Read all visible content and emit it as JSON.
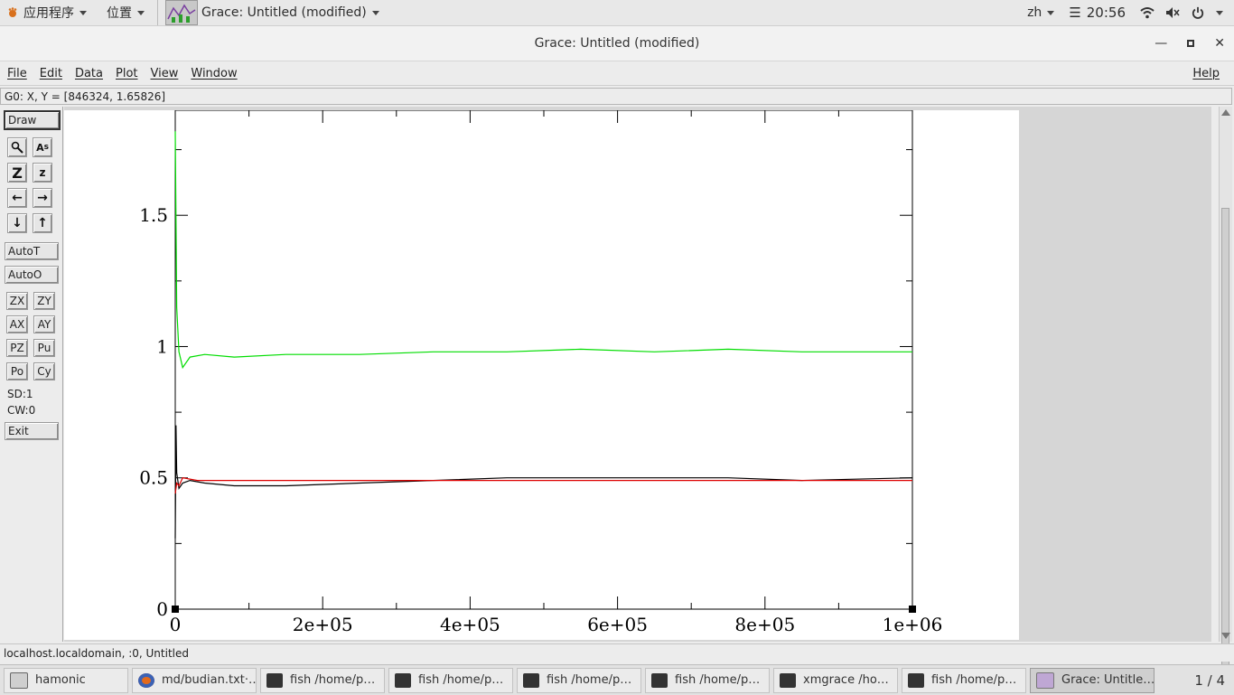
{
  "topbar": {
    "apps_label": "应用程序",
    "places_label": "位置",
    "window_label": "Grace: Untitled (modified)",
    "lang": "zh",
    "time": "20:56",
    "icons": [
      "wifi-icon",
      "volume-muted-icon",
      "power-icon"
    ]
  },
  "window": {
    "title": "Grace: Untitled (modified)",
    "controls": [
      "minimize-icon",
      "maximize-icon",
      "close-icon"
    ]
  },
  "menubar": {
    "items": [
      "File",
      "Edit",
      "Data",
      "Plot",
      "View",
      "Window"
    ],
    "help": "Help"
  },
  "locator": "G0: X, Y = [846324, 1.65826]",
  "toolbox": {
    "draw": "Draw",
    "autot": "AutoT",
    "autoo": "AutoO",
    "small_buttons": [
      "ZX",
      "ZY",
      "AX",
      "AY",
      "PZ",
      "Pu",
      "Po",
      "Cy"
    ],
    "sd": "SD:1",
    "cw": "CW:0",
    "exit": "Exit",
    "icon_names": [
      "zoom-icon",
      "text-icon",
      "zoom-in-icon",
      "zoom-out-icon",
      "scroll-left-icon",
      "scroll-right-icon",
      "scroll-down-icon",
      "scroll-up-icon"
    ]
  },
  "chart_data": {
    "type": "line",
    "title": "",
    "xlabel": "",
    "ylabel": "",
    "xlim": [
      0,
      1000000
    ],
    "ylim": [
      0,
      1.9
    ],
    "x_ticks": [
      0,
      200000,
      400000,
      600000,
      800000,
      1000000
    ],
    "x_tick_labels": [
      "0",
      "2e+05",
      "4e+05",
      "6e+05",
      "8e+05",
      "1e+06"
    ],
    "y_ticks": [
      0,
      0.5,
      1,
      1.5
    ],
    "y_tick_labels": [
      "0",
      "0.5",
      "1",
      "1.5"
    ],
    "grid": false,
    "legend": "none",
    "series": [
      {
        "color": "#00dd00",
        "x": [
          0,
          2000,
          5000,
          10000,
          20000,
          40000,
          80000,
          150000,
          250000,
          350000,
          450000,
          550000,
          650000,
          750000,
          850000,
          1000000
        ],
        "y": [
          1.82,
          1.15,
          0.98,
          0.92,
          0.96,
          0.97,
          0.96,
          0.97,
          0.97,
          0.98,
          0.98,
          0.99,
          0.98,
          0.99,
          0.98,
          0.98
        ]
      },
      {
        "color": "#000000",
        "x": [
          0,
          1000,
          2000,
          5000,
          10000,
          20000,
          40000,
          80000,
          150000,
          250000,
          350000,
          450000,
          550000,
          650000,
          750000,
          850000,
          1000000
        ],
        "y": [
          0.27,
          0.7,
          0.52,
          0.46,
          0.48,
          0.49,
          0.48,
          0.47,
          0.47,
          0.48,
          0.49,
          0.5,
          0.5,
          0.5,
          0.5,
          0.49,
          0.5
        ]
      },
      {
        "color": "#dd0000",
        "x": [
          0,
          2000,
          5000,
          10000,
          30000,
          100000,
          300000,
          600000,
          1000000
        ],
        "y": [
          0.44,
          0.48,
          0.47,
          0.5,
          0.49,
          0.49,
          0.49,
          0.49,
          0.49
        ]
      }
    ]
  },
  "statusline": "localhost.localdomain, :0, Untitled",
  "taskbar": {
    "items": [
      {
        "label": "hamonic",
        "icon": "terminal-icon"
      },
      {
        "label": "md/budian.txt·…",
        "icon": "firefox-icon"
      },
      {
        "label": "fish  /home/p…",
        "icon": "terminal-icon"
      },
      {
        "label": "fish  /home/p…",
        "icon": "terminal-icon"
      },
      {
        "label": "fish  /home/p…",
        "icon": "terminal-icon"
      },
      {
        "label": "fish  /home/p…",
        "icon": "terminal-icon"
      },
      {
        "label": "xmgrace  /ho…",
        "icon": "terminal-icon"
      },
      {
        "label": "fish  /home/p…",
        "icon": "terminal-icon"
      },
      {
        "label": "Grace: Untitle…",
        "icon": "grace-icon"
      }
    ],
    "pager": "1 / 4"
  }
}
